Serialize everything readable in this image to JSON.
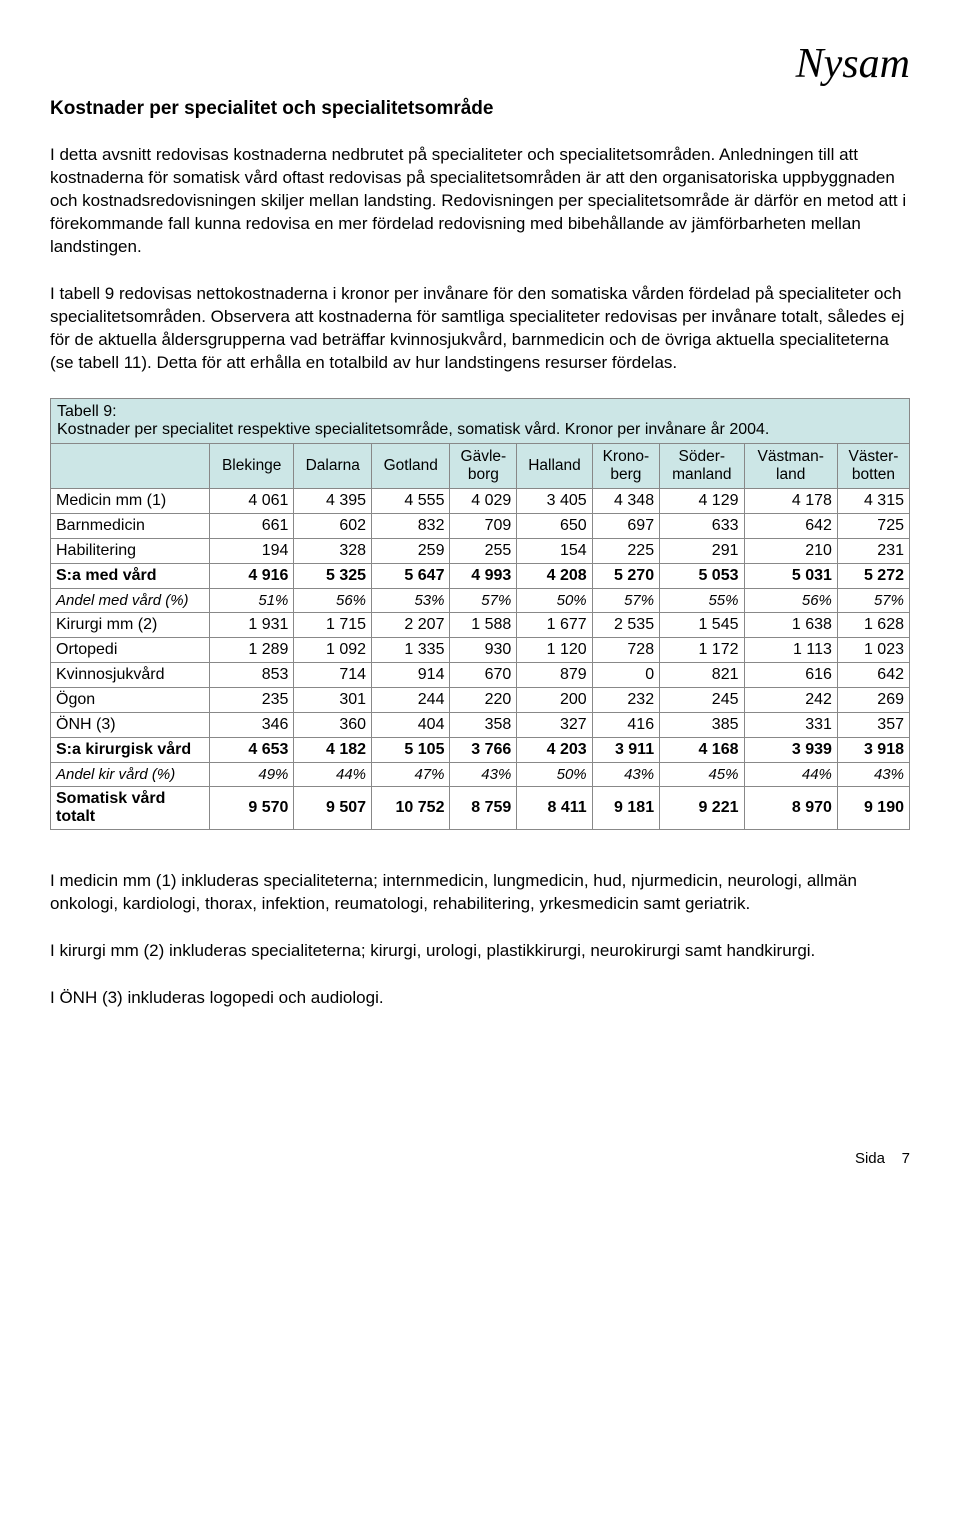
{
  "logo": "Nysam",
  "heading": "Kostnader per specialitet och specialitetsområde",
  "para1": "I detta avsnitt redovisas kostnaderna nedbrutet på specialiteter och specialitetsområden. Anledningen till att kostnaderna för somatisk vård oftast redovisas på specialitetsområden är att den organisatoriska uppbyggnaden och kostnadsredovisningen skiljer mellan landsting. Redovisningen per specialitetsområde är därför en metod att i förekommande fall kunna redovisa en mer fördelad redovisning med bibehållande av jämförbarheten mellan landstingen.",
  "para2": "I tabell 9 redovisas nettokostnaderna i kronor per invånare för den somatiska vården fördelad på specialiteter och specialitetsområden. Observera att kostnaderna för samtliga specialiteter redovisas per invånare totalt, således ej för de aktuella åldersgrupperna vad beträffar kvinnosjukvård, barnmedicin och de övriga aktuella specialiteterna (se tabell 11). Detta för att erhålla en totalbild av hur landstingens resurser fördelas.",
  "table": {
    "title_line1": "Tabell 9:",
    "title_line2": "Kostnader per specialitet respektive specialitetsområde, somatisk vård. Kronor per invånare år 2004.",
    "header_bg": "#cce6e6",
    "border_color": "#888888",
    "columns": [
      "",
      "Blekinge",
      "Dalarna",
      "Gotland",
      "Gävle-borg",
      "Halland",
      "Krono-berg",
      "Söder-manland",
      "Västman-land",
      "Väster-botten"
    ],
    "rows": [
      {
        "label": "Medicin mm (1)",
        "vals": [
          "4 061",
          "4 395",
          "4 555",
          "4 029",
          "3 405",
          "4 348",
          "4 129",
          "4 178",
          "4 315"
        ],
        "bold": false
      },
      {
        "label": "Barnmedicin",
        "vals": [
          "661",
          "602",
          "832",
          "709",
          "650",
          "697",
          "633",
          "642",
          "725"
        ],
        "bold": false
      },
      {
        "label": "Habilitering",
        "vals": [
          "194",
          "328",
          "259",
          "255",
          "154",
          "225",
          "291",
          "210",
          "231"
        ],
        "bold": false
      },
      {
        "label": "S:a med vård",
        "vals": [
          "4 916",
          "5 325",
          "5 647",
          "4 993",
          "4 208",
          "5 270",
          "5 053",
          "5 031",
          "5 272"
        ],
        "bold": true
      },
      {
        "label": "Andel med vård (%)",
        "vals": [
          "51%",
          "56%",
          "53%",
          "57%",
          "50%",
          "57%",
          "55%",
          "56%",
          "57%"
        ],
        "italic": true
      },
      {
        "label": "Kirurgi mm (2)",
        "vals": [
          "1 931",
          "1 715",
          "2 207",
          "1 588",
          "1 677",
          "2 535",
          "1 545",
          "1 638",
          "1 628"
        ],
        "bold": false
      },
      {
        "label": "Ortopedi",
        "vals": [
          "1 289",
          "1 092",
          "1 335",
          "930",
          "1 120",
          "728",
          "1 172",
          "1 113",
          "1 023"
        ],
        "bold": false
      },
      {
        "label": "Kvinnosjukvård",
        "vals": [
          "853",
          "714",
          "914",
          "670",
          "879",
          "0",
          "821",
          "616",
          "642"
        ],
        "bold": false
      },
      {
        "label": "Ögon",
        "vals": [
          "235",
          "301",
          "244",
          "220",
          "200",
          "232",
          "245",
          "242",
          "269"
        ],
        "bold": false
      },
      {
        "label": "ÖNH (3)",
        "vals": [
          "346",
          "360",
          "404",
          "358",
          "327",
          "416",
          "385",
          "331",
          "357"
        ],
        "bold": false
      },
      {
        "label": "S:a kirurgisk vård",
        "vals": [
          "4 653",
          "4 182",
          "5 105",
          "3 766",
          "4 203",
          "3 911",
          "4 168",
          "3 939",
          "3 918"
        ],
        "bold": true
      },
      {
        "label": "Andel kir vård (%)",
        "vals": [
          "49%",
          "44%",
          "47%",
          "43%",
          "50%",
          "43%",
          "45%",
          "44%",
          "43%"
        ],
        "italic": true
      },
      {
        "label": "Somatisk vård totalt",
        "vals": [
          "9 570",
          "9 507",
          "10 752",
          "8 759",
          "8 411",
          "9 181",
          "9 221",
          "8 970",
          "9 190"
        ],
        "bold": true
      }
    ]
  },
  "para3": "I medicin mm (1) inkluderas specialiteterna; internmedicin, lungmedicin, hud, njurmedicin, neurologi, allmän onkologi, kardiologi, thorax, infektion, reumatologi, rehabilitering, yrkesmedicin samt geriatrik.",
  "para4": "I kirurgi mm (2) inkluderas specialiteterna; kirurgi, urologi, plastikkirurgi, neurokirurgi samt handkirurgi.",
  "para5": "I ÖNH (3) inkluderas logopedi och audiologi.",
  "footer_label": "Sida",
  "footer_page": "7"
}
